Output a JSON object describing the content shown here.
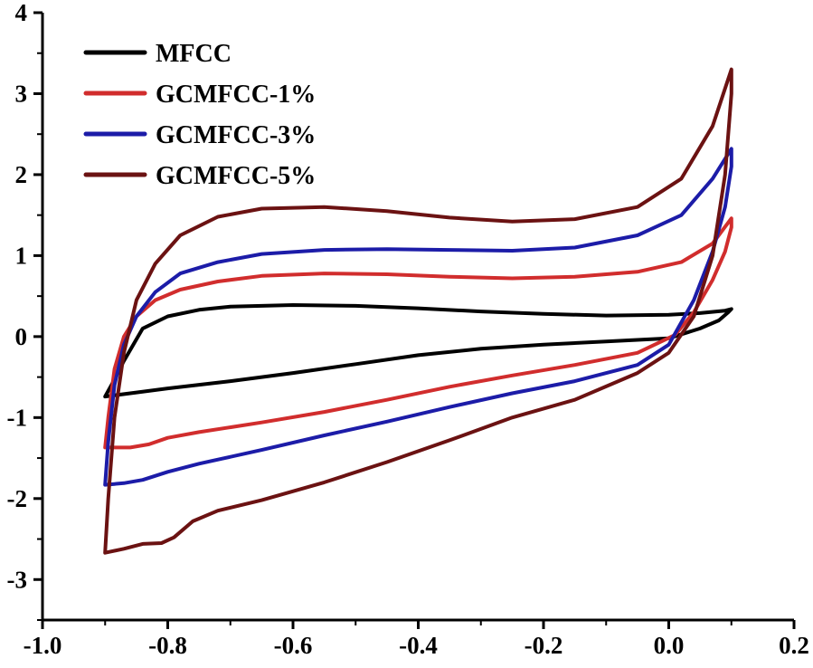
{
  "chart_data": {
    "type": "line",
    "title": "",
    "xlabel": "",
    "ylabel": "",
    "xlim": [
      -1.0,
      0.2
    ],
    "ylim": [
      -3.5,
      4
    ],
    "x_ticks": [
      -1.0,
      -0.8,
      -0.6,
      -0.4,
      -0.2,
      0.0,
      0.2
    ],
    "x_tick_labels": [
      "-1.0",
      "-0.8",
      "-0.6",
      "-0.4",
      "-0.2",
      "0.0",
      "0.2"
    ],
    "y_ticks": [
      -3,
      -2,
      -1,
      0,
      1,
      2,
      3,
      4
    ],
    "y_tick_labels": [
      "-3",
      "-2",
      "-1",
      "0",
      "1",
      "2",
      "3",
      "4"
    ],
    "grid": false,
    "legend_position": "top-left",
    "series": [
      {
        "name": "MFCC",
        "color": "#000000",
        "points": [
          [
            -0.9,
            -0.74
          ],
          [
            -0.89,
            -0.6
          ],
          [
            -0.87,
            -0.3
          ],
          [
            -0.84,
            0.1
          ],
          [
            -0.8,
            0.25
          ],
          [
            -0.75,
            0.33
          ],
          [
            -0.7,
            0.37
          ],
          [
            -0.6,
            0.39
          ],
          [
            -0.5,
            0.38
          ],
          [
            -0.4,
            0.35
          ],
          [
            -0.3,
            0.31
          ],
          [
            -0.2,
            0.28
          ],
          [
            -0.1,
            0.26
          ],
          [
            0.0,
            0.27
          ],
          [
            0.05,
            0.29
          ],
          [
            0.09,
            0.32
          ],
          [
            0.1,
            0.34
          ],
          [
            0.095,
            0.3
          ],
          [
            0.08,
            0.2
          ],
          [
            0.05,
            0.1
          ],
          [
            0.0,
            -0.02
          ],
          [
            -0.1,
            -0.06
          ],
          [
            -0.2,
            -0.1
          ],
          [
            -0.3,
            -0.15
          ],
          [
            -0.4,
            -0.23
          ],
          [
            -0.5,
            -0.34
          ],
          [
            -0.6,
            -0.45
          ],
          [
            -0.7,
            -0.55
          ],
          [
            -0.8,
            -0.64
          ],
          [
            -0.85,
            -0.69
          ],
          [
            -0.9,
            -0.74
          ]
        ]
      },
      {
        "name": "GCMFCC-1%",
        "color": "#d12d2d",
        "points": [
          [
            -0.9,
            -1.37
          ],
          [
            -0.895,
            -1.0
          ],
          [
            -0.885,
            -0.4
          ],
          [
            -0.87,
            0.0
          ],
          [
            -0.85,
            0.25
          ],
          [
            -0.82,
            0.45
          ],
          [
            -0.78,
            0.58
          ],
          [
            -0.72,
            0.68
          ],
          [
            -0.65,
            0.75
          ],
          [
            -0.55,
            0.78
          ],
          [
            -0.45,
            0.77
          ],
          [
            -0.35,
            0.74
          ],
          [
            -0.25,
            0.72
          ],
          [
            -0.15,
            0.74
          ],
          [
            -0.05,
            0.8
          ],
          [
            0.02,
            0.92
          ],
          [
            0.07,
            1.15
          ],
          [
            0.1,
            1.46
          ],
          [
            0.1,
            1.35
          ],
          [
            0.09,
            1.05
          ],
          [
            0.07,
            0.7
          ],
          [
            0.04,
            0.3
          ],
          [
            0.01,
            0.02
          ],
          [
            -0.05,
            -0.2
          ],
          [
            -0.15,
            -0.35
          ],
          [
            -0.25,
            -0.48
          ],
          [
            -0.35,
            -0.62
          ],
          [
            -0.45,
            -0.78
          ],
          [
            -0.55,
            -0.93
          ],
          [
            -0.65,
            -1.06
          ],
          [
            -0.75,
            -1.18
          ],
          [
            -0.8,
            -1.25
          ],
          [
            -0.83,
            -1.33
          ],
          [
            -0.86,
            -1.37
          ],
          [
            -0.9,
            -1.37
          ]
        ]
      },
      {
        "name": "GCMFCC-3%",
        "color": "#1c1ca8",
        "points": [
          [
            -0.9,
            -1.83
          ],
          [
            -0.895,
            -1.3
          ],
          [
            -0.885,
            -0.6
          ],
          [
            -0.87,
            -0.1
          ],
          [
            -0.85,
            0.25
          ],
          [
            -0.82,
            0.55
          ],
          [
            -0.78,
            0.78
          ],
          [
            -0.72,
            0.92
          ],
          [
            -0.65,
            1.02
          ],
          [
            -0.55,
            1.07
          ],
          [
            -0.45,
            1.08
          ],
          [
            -0.35,
            1.07
          ],
          [
            -0.25,
            1.06
          ],
          [
            -0.15,
            1.1
          ],
          [
            -0.05,
            1.25
          ],
          [
            0.02,
            1.5
          ],
          [
            0.07,
            1.95
          ],
          [
            0.1,
            2.32
          ],
          [
            0.1,
            2.1
          ],
          [
            0.09,
            1.6
          ],
          [
            0.07,
            1.05
          ],
          [
            0.04,
            0.45
          ],
          [
            0.0,
            -0.1
          ],
          [
            -0.05,
            -0.35
          ],
          [
            -0.15,
            -0.55
          ],
          [
            -0.25,
            -0.7
          ],
          [
            -0.35,
            -0.87
          ],
          [
            -0.45,
            -1.05
          ],
          [
            -0.55,
            -1.22
          ],
          [
            -0.65,
            -1.4
          ],
          [
            -0.75,
            -1.57
          ],
          [
            -0.8,
            -1.67
          ],
          [
            -0.84,
            -1.77
          ],
          [
            -0.87,
            -1.81
          ],
          [
            -0.9,
            -1.83
          ]
        ]
      },
      {
        "name": "GCMFCC-5%",
        "color": "#6b1212",
        "points": [
          [
            -0.9,
            -2.67
          ],
          [
            -0.895,
            -2.0
          ],
          [
            -0.885,
            -1.0
          ],
          [
            -0.87,
            -0.2
          ],
          [
            -0.85,
            0.45
          ],
          [
            -0.82,
            0.9
          ],
          [
            -0.78,
            1.25
          ],
          [
            -0.72,
            1.48
          ],
          [
            -0.65,
            1.58
          ],
          [
            -0.55,
            1.6
          ],
          [
            -0.45,
            1.55
          ],
          [
            -0.35,
            1.47
          ],
          [
            -0.25,
            1.42
          ],
          [
            -0.15,
            1.45
          ],
          [
            -0.05,
            1.6
          ],
          [
            0.02,
            1.95
          ],
          [
            0.07,
            2.6
          ],
          [
            0.1,
            3.3
          ],
          [
            0.1,
            3.0
          ],
          [
            0.09,
            2.0
          ],
          [
            0.07,
            1.0
          ],
          [
            0.04,
            0.25
          ],
          [
            0.0,
            -0.2
          ],
          [
            -0.05,
            -0.45
          ],
          [
            -0.15,
            -0.78
          ],
          [
            -0.25,
            -1.0
          ],
          [
            -0.35,
            -1.28
          ],
          [
            -0.45,
            -1.55
          ],
          [
            -0.55,
            -1.8
          ],
          [
            -0.65,
            -2.02
          ],
          [
            -0.72,
            -2.15
          ],
          [
            -0.76,
            -2.28
          ],
          [
            -0.79,
            -2.48
          ],
          [
            -0.81,
            -2.55
          ],
          [
            -0.84,
            -2.56
          ],
          [
            -0.87,
            -2.62
          ],
          [
            -0.9,
            -2.67
          ]
        ]
      }
    ]
  }
}
